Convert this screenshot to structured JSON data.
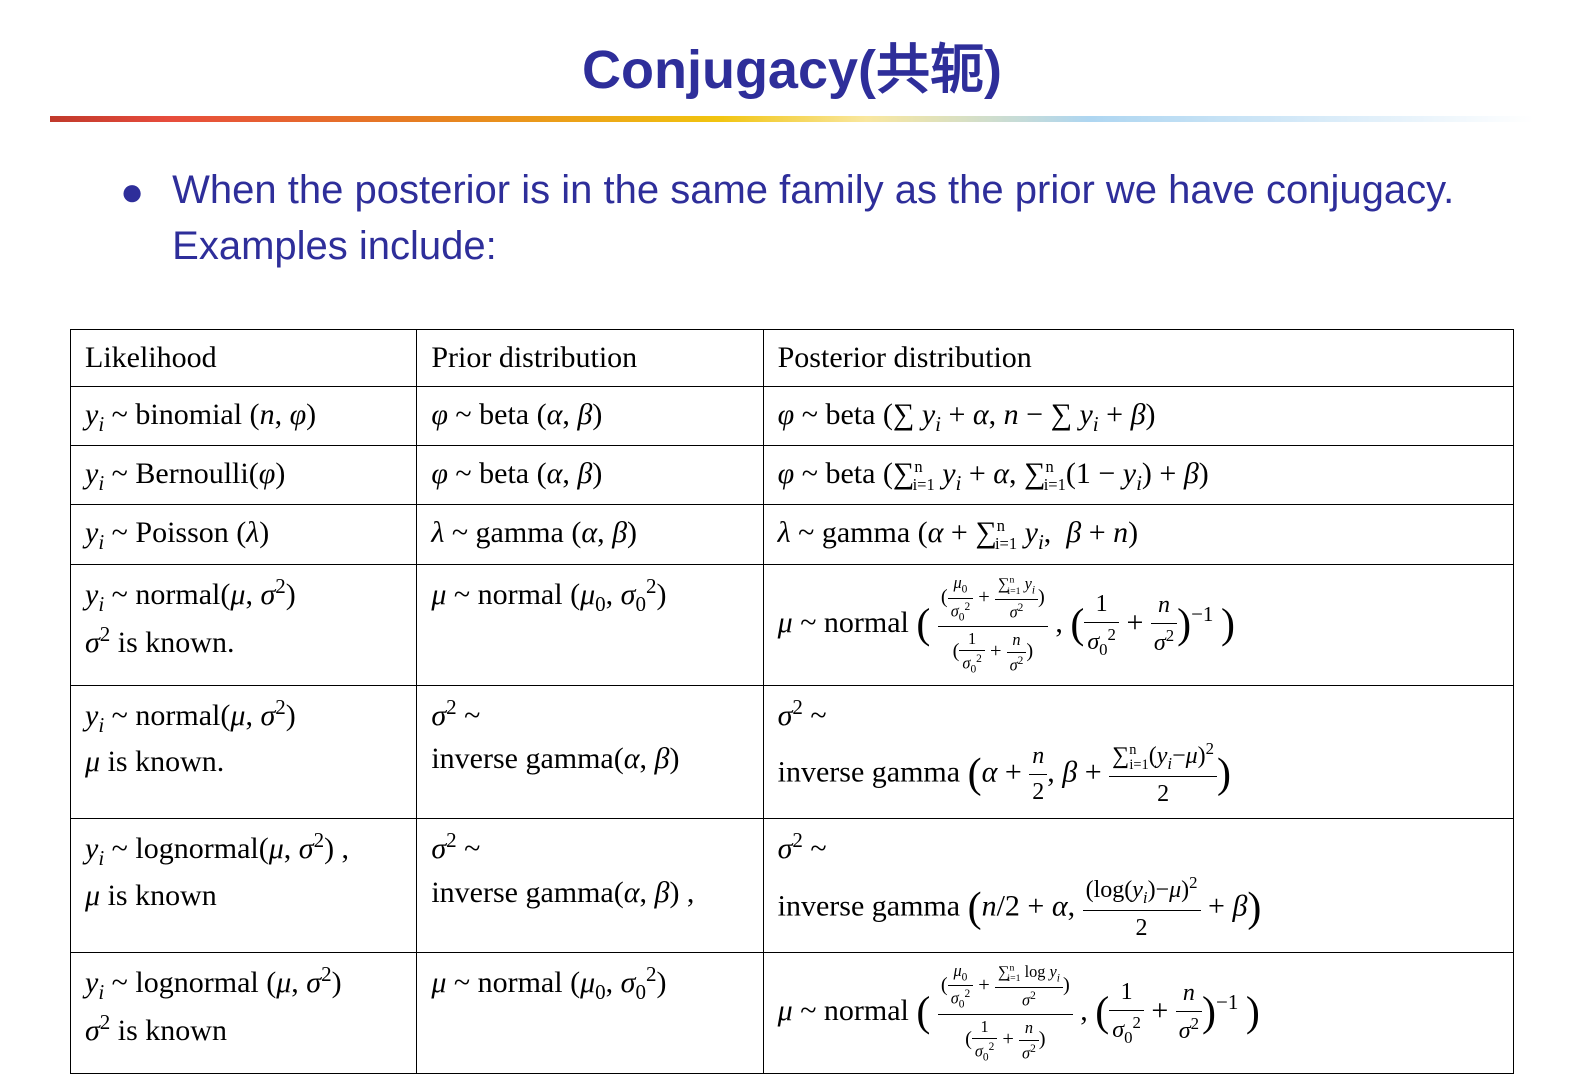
{
  "title": "Conjugacy(共轭)",
  "bullet_text": "When the posterior is in the same family as the prior we have conjugacy. Examples include:",
  "colors": {
    "title_color": "#2e2e9a",
    "bullet_color": "#2e2e9a",
    "text_color": "#000000",
    "background": "#ffffff",
    "divider_gradient": [
      "#c0392b",
      "#e74c3c",
      "#e67e22",
      "#f1c40f",
      "#f9e79f",
      "#aed6f1",
      "#d6eaf8",
      "#ffffff"
    ]
  },
  "typography": {
    "title_fontsize": 54,
    "bullet_fontsize": 40,
    "table_fontsize": 30,
    "title_font": "Arial",
    "table_font": "Times New Roman"
  },
  "table": {
    "type": "table",
    "columns": [
      "Likelihood",
      "Prior distribution",
      "Posterior distribution"
    ],
    "column_widths": [
      "24%",
      "24%",
      "52%"
    ],
    "rows": [
      {
        "likelihood": "yᵢ ~ binomial (n, φ)",
        "prior": "φ ~ beta (α, β)",
        "posterior": "φ ~ beta (Σ yᵢ + α, n − Σ yᵢ + β)"
      },
      {
        "likelihood": "yᵢ ~ Bernoulli(φ)",
        "prior": "φ ~ beta (α, β)",
        "posterior": "φ ~ beta (Σⁿᵢ₌₁ yᵢ + α, Σⁿᵢ₌₁(1 − yᵢ) + β)"
      },
      {
        "likelihood": "yᵢ ~ Poisson (λ)",
        "prior": "λ ~ gamma (α, β)",
        "posterior": "λ ~ gamma (α + Σⁿᵢ₌₁ yᵢ,  β + n)"
      },
      {
        "likelihood": "yᵢ ~ normal(μ, σ²)\nσ² is known.",
        "prior": "μ ~ normal (μ₀, σ₀²)",
        "posterior": "μ ~ normal ( (μ₀/σ₀² + Σⁿᵢ₌₁ yᵢ/σ²) / (1/σ₀² + n/σ²) , (1/σ₀² + n/σ²)⁻¹ )"
      },
      {
        "likelihood": "yᵢ ~ normal(μ, σ²)\nμ is known.",
        "prior": "σ² ~\ninverse gamma(α, β)",
        "posterior": "σ² ~\ninverse gamma (α + n/2, β + Σⁿᵢ₌₁(yᵢ−μ)²/2)"
      },
      {
        "likelihood": "yᵢ ~ lognormal(μ, σ²),\nμ is known",
        "prior": "σ² ~\ninverse gamma(α, β) ,",
        "posterior": "σ² ~\ninverse gamma (n/2 + α, (log(yᵢ)−μ)²/2 + β)"
      },
      {
        "likelihood": "yᵢ ~ lognormal (μ, σ²)\nσ² is known",
        "prior": "μ ~ normal (μ₀, σ₀²)",
        "posterior": "μ ~ normal ( (μ₀/σ₀² + Σⁿᵢ₌₁ log yᵢ/σ²) / (1/σ₀² + n/σ²) , (1/σ₀² + n/σ²)⁻¹ )"
      }
    ]
  }
}
